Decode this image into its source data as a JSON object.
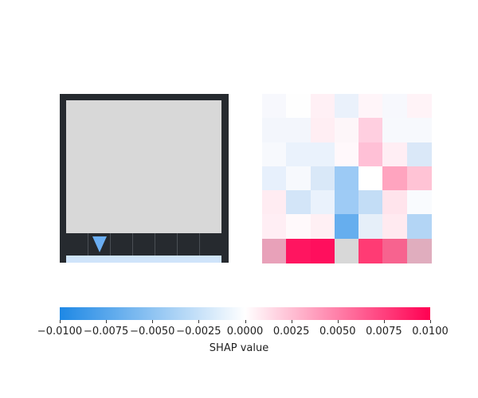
{
  "panels": {
    "state": {
      "tiles": 7,
      "selected_tile": 1,
      "marker": "triangle-down-icon",
      "colors": {
        "frame": "#262a2f",
        "inner": "#d8d8d8",
        "strip": "#cfe4fa",
        "marker": "#6aaef3"
      }
    },
    "heatmap": {
      "rows": 7,
      "cols": 7,
      "cells": [
        [
          "#f7f8fd",
          "#fefefe",
          "#fff0f5",
          "#eaf1fb",
          "#fff5f9",
          "#f7f8fd",
          "#fff3f7"
        ],
        [
          "#f3f6fc",
          "#f3f6fc",
          "#ffeef3",
          "#fdf6f9",
          "#ffcfe0",
          "#f7f9fd",
          "#f7f9fd"
        ],
        [
          "#f7f9fd",
          "#eaf2fc",
          "#eaf2fc",
          "#fff8fb",
          "#ffc0d6",
          "#ffeef4",
          "#dae8f8"
        ],
        [
          "#e7f0fc",
          "#f7f9fd",
          "#d9e8f8",
          "#9ccaf5",
          "#ffffff",
          "#ffa4bf",
          "#ffc3d5"
        ],
        [
          "#ffecf2",
          "#d3e5f8",
          "#eaf2fc",
          "#9ecbf5",
          "#c3ddf6",
          "#ffe4ec",
          "#f9fbfe"
        ],
        [
          "#ffeef4",
          "#fff9fb",
          "#fff0f4",
          "#66aeee",
          "#e6eff9",
          "#ffeaf0",
          "#b3d5f5"
        ],
        [
          "#e8a1b9",
          "#ff1560",
          "#ff0f5d",
          "#d8d8d8",
          "#ff3b74",
          "#f7638f",
          "#e0adbe"
        ]
      ]
    }
  },
  "colorbar": {
    "ticks": [
      "−0.0100",
      "−0.0075",
      "−0.0050",
      "−0.0025",
      "0.0000",
      "0.0025",
      "0.0050",
      "0.0075",
      "0.0100"
    ],
    "label": "SHAP value",
    "colors": {
      "negative": "#1e88e5",
      "zero": "#ffffff",
      "positive": "#ff0052"
    }
  }
}
